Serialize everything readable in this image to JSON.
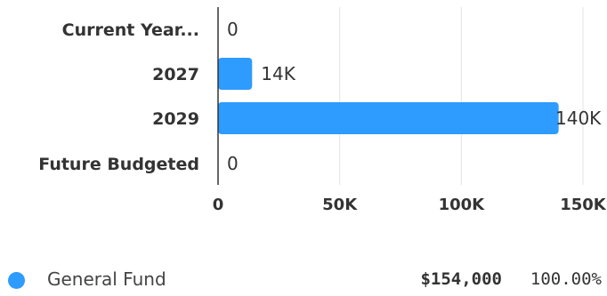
{
  "chart_data": {
    "type": "bar",
    "orientation": "horizontal",
    "categories": [
      "Current Year...",
      "2027",
      "2029",
      "Future Budgeted"
    ],
    "series": [
      {
        "name": "General Fund",
        "values": [
          0,
          14000,
          140000,
          0
        ],
        "color": "#2E9BFF"
      }
    ],
    "value_labels": [
      "0",
      "14K",
      "140K",
      "0"
    ],
    "xlim": [
      0,
      150000
    ],
    "xticks": [
      0,
      50000,
      100000,
      150000
    ],
    "xtick_labels": [
      "0",
      "50K",
      "100K",
      "150K"
    ],
    "grid": true,
    "legend_position": "bottom"
  },
  "legend": {
    "items": [
      {
        "name": "General Fund",
        "amount": "$154,000",
        "percent": "100.00%",
        "color": "#2E9BFF"
      }
    ]
  }
}
